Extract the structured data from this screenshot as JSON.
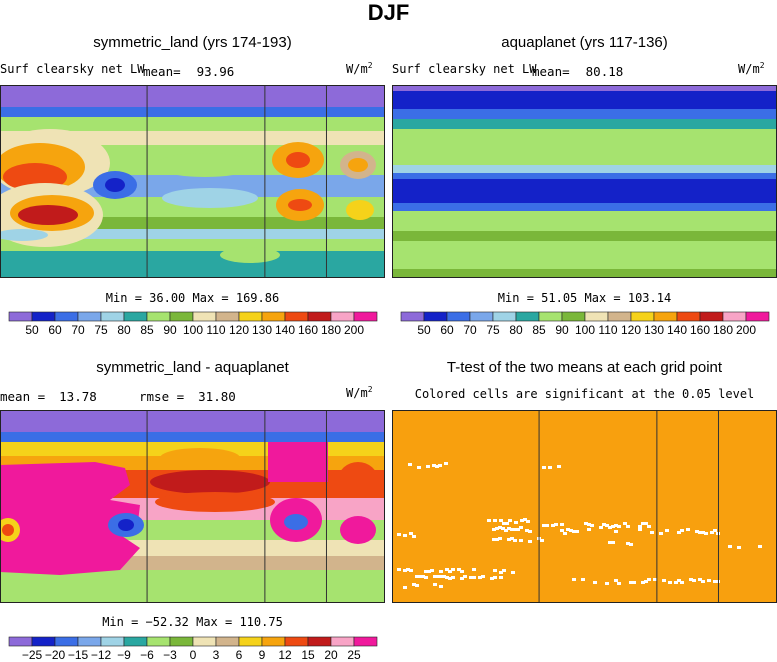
{
  "suptitle": "DJF",
  "colors": {
    "abs_scale": [
      "#8d6ad9",
      "#1422c8",
      "#3b6ee6",
      "#7aa7ea",
      "#9fd3e6",
      "#2aa7a1",
      "#a6e36f",
      "#7ab73a",
      "#efe3b5",
      "#d2b48c",
      "#f5d21a",
      "#f6a40e",
      "#ee4a12",
      "#c11b1b",
      "#f8a4c6",
      "#f0199c"
    ],
    "sig": "#f8a00e",
    "insig": "#ffffff"
  },
  "chart_data": [
    {
      "type": "heatmap",
      "title": "symmetric_land (yrs 174-193)",
      "left_label": "Surf clearsky net LW",
      "mean_label": "mean=",
      "mean_value": "93.96",
      "units": "W/m",
      "units_sup": "2",
      "minmax": "Min =   36.00 Max = 169.86",
      "min": 36.0,
      "max": 169.86,
      "colorbar_labels": [
        "50",
        "60",
        "70",
        "75",
        "80",
        "85",
        "90",
        "100",
        "110",
        "120",
        "130",
        "140",
        "160",
        "180",
        "200"
      ],
      "continent_lines": [
        0.382,
        0.688,
        0.848
      ]
    },
    {
      "type": "heatmap",
      "title": "aquaplanet (yrs 117-136)",
      "left_label": "Surf clearsky net LW",
      "mean_label": "mean=",
      "mean_value": "80.18",
      "units": "W/m",
      "units_sup": "2",
      "minmax": "Min =   51.05 Max = 103.14",
      "min": 51.05,
      "max": 103.14,
      "colorbar_labels": [
        "50",
        "60",
        "70",
        "75",
        "80",
        "85",
        "90",
        "100",
        "110",
        "120",
        "130",
        "140",
        "160",
        "180",
        "200"
      ]
    },
    {
      "type": "heatmap",
      "title": "symmetric_land - aquaplanet",
      "mean_label": "mean =",
      "mean_value": "13.78",
      "rmse_label": "rmse =",
      "rmse_value": "31.80",
      "units": "W/m",
      "units_sup": "2",
      "minmax": "Min = −52.32 Max = 110.75",
      "min": -52.32,
      "max": 110.75,
      "colorbar_labels": [
        "−25",
        "−20",
        "−15",
        "−12",
        "−9",
        "−6",
        "−3",
        "0",
        "3",
        "6",
        "9",
        "12",
        "15",
        "20",
        "25"
      ],
      "continent_lines": [
        0.382,
        0.688,
        0.848
      ]
    },
    {
      "type": "heatmap",
      "title": "T-test of the two means at each grid point",
      "subtitle": "Colored cells are significant at the 0.05 level",
      "continent_lines": [
        0.382,
        0.688,
        0.848
      ]
    }
  ]
}
